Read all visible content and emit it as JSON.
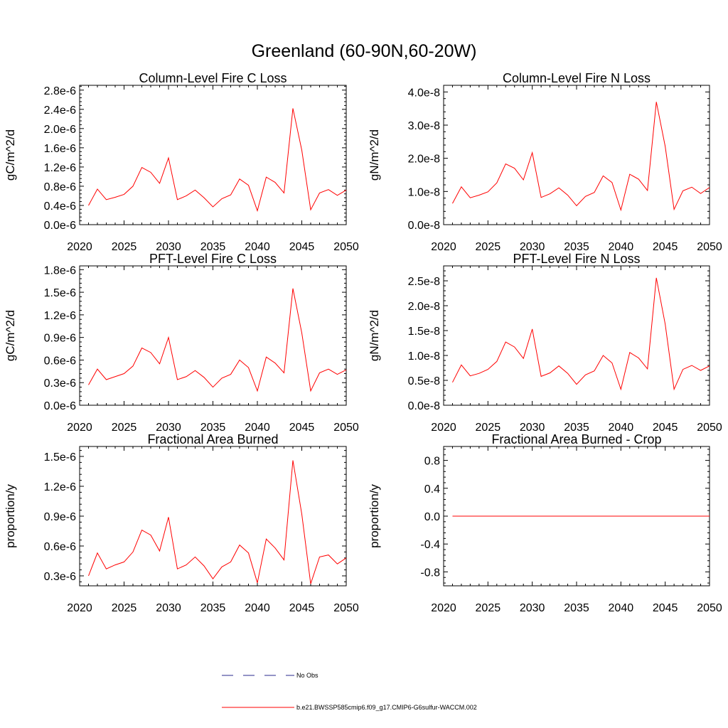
{
  "figure": {
    "title": "Greenland (60-90N,60-20W)",
    "legend": [
      {
        "label": "No Obs",
        "color": "#2a2a8c",
        "style": "dashed"
      },
      {
        "label": "b.e21.BWSSP585cmip6.f09_g17.CMIP6-G6sulfur-WACCM.002",
        "color": "#ff0000",
        "style": "solid"
      }
    ]
  },
  "chart_data": [
    {
      "type": "line",
      "title": "Column-Level Fire C Loss",
      "ylabel": "gC/m^2/d",
      "xlabel": "",
      "xlim": [
        2020,
        2050
      ],
      "ylim": [
        0,
        2.9e-06
      ],
      "xticks": [
        2020,
        2025,
        2030,
        2035,
        2040,
        2045,
        2050
      ],
      "yticks": [
        0,
        4e-07,
        8e-07,
        1.2e-06,
        1.6e-06,
        2e-06,
        2.4e-06,
        2.8e-06
      ],
      "ytick_labels": [
        "0.0e-6",
        "0.4e-6",
        "0.8e-6",
        "1.2e-6",
        "1.6e-6",
        "2.0e-6",
        "2.4e-6",
        "2.8e-6"
      ],
      "color": "#ff0000",
      "series": [
        {
          "x": [
            2021,
            2022,
            2023,
            2024,
            2025,
            2026,
            2027,
            2028,
            2029,
            2030,
            2031,
            2032,
            2033,
            2034,
            2035,
            2036,
            2037,
            2038,
            2039,
            2040,
            2041,
            2042,
            2043,
            2044,
            2045,
            2046,
            2047,
            2048,
            2049,
            2050
          ],
          "values": [
            4e-07,
            7.4e-07,
            5.2e-07,
            5.7e-07,
            6.3e-07,
            8e-07,
            1.19e-06,
            1.09e-06,
            8.6e-07,
            1.39e-06,
            5.2e-07,
            6e-07,
            7.2e-07,
            5.6e-07,
            3.7e-07,
            5.4e-07,
            6.2e-07,
            9.5e-07,
            8.2e-07,
            2.9e-07,
            9.9e-07,
            8.8e-07,
            6.6e-07,
            2.42e-06,
            1.55e-06,
            3.1e-07,
            6.6e-07,
            7.3e-07,
            6.1e-07,
            7.2e-07
          ]
        }
      ]
    },
    {
      "type": "line",
      "title": "Column-Level Fire N Loss",
      "ylabel": "gN/m^2/d",
      "xlabel": "",
      "xlim": [
        2020,
        2050
      ],
      "ylim": [
        0,
        4.2e-08
      ],
      "xticks": [
        2020,
        2025,
        2030,
        2035,
        2040,
        2045,
        2050
      ],
      "yticks": [
        0,
        1e-08,
        2e-08,
        3e-08,
        4e-08
      ],
      "ytick_labels": [
        "0.0e-8",
        "1.0e-8",
        "2.0e-8",
        "3.0e-8",
        "4.0e-8"
      ],
      "color": "#ff0000",
      "series": [
        {
          "x": [
            2021,
            2022,
            2023,
            2024,
            2025,
            2026,
            2027,
            2028,
            2029,
            2030,
            2031,
            2032,
            2033,
            2034,
            2035,
            2036,
            2037,
            2038,
            2039,
            2040,
            2041,
            2042,
            2043,
            2044,
            2045,
            2046,
            2047,
            2048,
            2049,
            2050
          ],
          "values": [
            6.4e-09,
            1.14e-08,
            8.1e-09,
            8.9e-09,
            9.9e-09,
            1.26e-08,
            1.83e-08,
            1.7e-08,
            1.35e-08,
            2.17e-08,
            8.2e-09,
            9.3e-09,
            1.11e-08,
            8.9e-09,
            5.7e-09,
            8.5e-09,
            9.7e-09,
            1.47e-08,
            1.27e-08,
            4.4e-09,
            1.52e-08,
            1.37e-08,
            1.03e-08,
            3.7e-08,
            2.36e-08,
            4.6e-09,
            1.02e-08,
            1.13e-08,
            9.4e-09,
            1.12e-08
          ]
        }
      ]
    },
    {
      "type": "line",
      "title": "PFT-Level Fire C Loss",
      "ylabel": "gC/m^2/d",
      "xlabel": "",
      "xlim": [
        2020,
        2050
      ],
      "ylim": [
        0,
        1.85e-06
      ],
      "xticks": [
        2020,
        2025,
        2030,
        2035,
        2040,
        2045,
        2050
      ],
      "yticks": [
        0,
        3e-07,
        6e-07,
        9e-07,
        1.2e-06,
        1.5e-06,
        1.8e-06
      ],
      "ytick_labels": [
        "0.0e-6",
        "0.3e-6",
        "0.6e-6",
        "0.9e-6",
        "1.2e-6",
        "1.5e-6",
        "1.8e-6"
      ],
      "color": "#ff0000",
      "series": [
        {
          "x": [
            2021,
            2022,
            2023,
            2024,
            2025,
            2026,
            2027,
            2028,
            2029,
            2030,
            2031,
            2032,
            2033,
            2034,
            2035,
            2036,
            2037,
            2038,
            2039,
            2040,
            2041,
            2042,
            2043,
            2044,
            2045,
            2046,
            2047,
            2048,
            2049,
            2050
          ],
          "values": [
            2.7e-07,
            4.8e-07,
            3.4e-07,
            3.8e-07,
            4.2e-07,
            5.2e-07,
            7.6e-07,
            7e-07,
            5.5e-07,
            9e-07,
            3.4e-07,
            3.8e-07,
            4.6e-07,
            3.7e-07,
            2.4e-07,
            3.6e-07,
            4.1e-07,
            6e-07,
            5e-07,
            1.9e-07,
            6.4e-07,
            5.6e-07,
            4.3e-07,
            1.55e-06,
            9.6e-07,
            1.9e-07,
            4.3e-07,
            4.8e-07,
            4.1e-07,
            4.7e-07
          ]
        }
      ]
    },
    {
      "type": "line",
      "title": "PFT-Level Fire N Loss",
      "ylabel": "gN/m^2/d",
      "xlabel": "",
      "xlim": [
        2020,
        2050
      ],
      "ylim": [
        0,
        2.8e-08
      ],
      "xticks": [
        2020,
        2025,
        2030,
        2035,
        2040,
        2045,
        2050
      ],
      "yticks": [
        0,
        5e-09,
        1e-08,
        1.5e-08,
        2e-08,
        2.5e-08
      ],
      "ytick_labels": [
        "0.0e-8",
        "0.5e-8",
        "1.0e-8",
        "1.5e-8",
        "2.0e-8",
        "2.5e-8"
      ],
      "color": "#ff0000",
      "series": [
        {
          "x": [
            2021,
            2022,
            2023,
            2024,
            2025,
            2026,
            2027,
            2028,
            2029,
            2030,
            2031,
            2032,
            2033,
            2034,
            2035,
            2036,
            2037,
            2038,
            2039,
            2040,
            2041,
            2042,
            2043,
            2044,
            2045,
            2046,
            2047,
            2048,
            2049,
            2050
          ],
          "values": [
            4.6e-09,
            8.1e-09,
            5.9e-09,
            6.4e-09,
            7.2e-09,
            8.8e-09,
            1.27e-08,
            1.17e-08,
            9.4e-09,
            1.53e-08,
            5.8e-09,
            6.5e-09,
            7.9e-09,
            6.4e-09,
            4.2e-09,
            6.1e-09,
            6.9e-09,
            1e-08,
            8.5e-09,
            3.2e-09,
            1.06e-08,
            9.5e-09,
            7.3e-09,
            2.56e-08,
            1.63e-08,
            3.2e-09,
            7.2e-09,
            8e-09,
            7e-09,
            7.9e-09
          ]
        }
      ]
    },
    {
      "type": "line",
      "title": "Fractional Area Burned",
      "ylabel": "proportion/y",
      "xlabel": "",
      "xlim": [
        2020,
        2050
      ],
      "ylim": [
        2e-07,
        1.6e-06
      ],
      "xticks": [
        2020,
        2025,
        2030,
        2035,
        2040,
        2045,
        2050
      ],
      "yticks": [
        3e-07,
        6e-07,
        9e-07,
        1.2e-06,
        1.5e-06
      ],
      "ytick_labels": [
        "0.3e-6",
        "0.6e-6",
        "0.9e-6",
        "1.2e-6",
        "1.5e-6"
      ],
      "color": "#ff0000",
      "series": [
        {
          "x": [
            2021,
            2022,
            2023,
            2024,
            2025,
            2026,
            2027,
            2028,
            2029,
            2030,
            2031,
            2032,
            2033,
            2034,
            2035,
            2036,
            2037,
            2038,
            2039,
            2040,
            2041,
            2042,
            2043,
            2044,
            2045,
            2046,
            2047,
            2048,
            2049,
            2050
          ],
          "values": [
            3e-07,
            5.3e-07,
            3.7e-07,
            4.1e-07,
            4.4e-07,
            5.4e-07,
            7.6e-07,
            7.1e-07,
            5.5e-07,
            8.9e-07,
            3.7e-07,
            4.1e-07,
            4.9e-07,
            4e-07,
            2.7e-07,
            3.9e-07,
            4.4e-07,
            6.1e-07,
            5.3e-07,
            2.3e-07,
            6.7e-07,
            5.8e-07,
            4.6e-07,
            1.46e-06,
            9.2e-07,
            2.2e-07,
            4.9e-07,
            5.1e-07,
            4.2e-07,
            4.8e-07
          ]
        }
      ]
    },
    {
      "type": "line",
      "title": "Fractional Area Burned - Crop",
      "ylabel": "proportion/y",
      "xlabel": "",
      "xlim": [
        2020,
        2050
      ],
      "ylim": [
        -1.0,
        1.0
      ],
      "xticks": [
        2020,
        2025,
        2030,
        2035,
        2040,
        2045,
        2050
      ],
      "yticks": [
        -0.8,
        -0.4,
        0,
        0.4,
        0.8
      ],
      "ytick_labels": [
        "-0.8",
        "-0.4",
        "0.0",
        "0.4",
        "0.8"
      ],
      "color": "#ff0000",
      "series": [
        {
          "x": [
            2021,
            2022,
            2023,
            2024,
            2025,
            2026,
            2027,
            2028,
            2029,
            2030,
            2031,
            2032,
            2033,
            2034,
            2035,
            2036,
            2037,
            2038,
            2039,
            2040,
            2041,
            2042,
            2043,
            2044,
            2045,
            2046,
            2047,
            2048,
            2049,
            2050
          ],
          "values": [
            0,
            0,
            0,
            0,
            0,
            0,
            0,
            0,
            0,
            0,
            0,
            0,
            0,
            0,
            0,
            0,
            0,
            0,
            0,
            0,
            0,
            0,
            0,
            0,
            0,
            0,
            0,
            0,
            0,
            0
          ]
        }
      ]
    }
  ]
}
